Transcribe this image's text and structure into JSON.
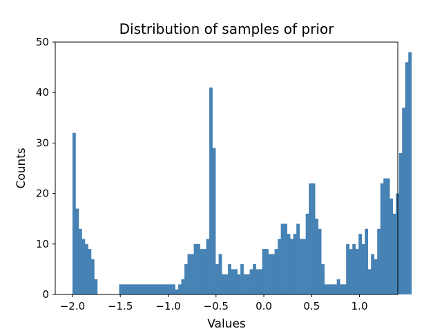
{
  "chart_data": {
    "type": "bar",
    "title": "Distribution of samples of prior",
    "xlabel": "Values",
    "ylabel": "Counts",
    "xlim": [
      -2.18,
      1.4
    ],
    "ylim": [
      0,
      50
    ],
    "bin_start": -2.0,
    "bin_width": 0.0325,
    "bar_color": "#4682b4",
    "x_ticks": [
      {
        "value": -2.0,
        "label": "−2.0"
      },
      {
        "value": -1.5,
        "label": "−1.5"
      },
      {
        "value": -1.0,
        "label": "−1.0"
      },
      {
        "value": -0.5,
        "label": "−0.5"
      },
      {
        "value": 0.0,
        "label": "0.0"
      },
      {
        "value": 0.5,
        "label": "0.5"
      },
      {
        "value": 1.0,
        "label": "1.0"
      }
    ],
    "y_ticks": [
      {
        "value": 0,
        "label": "0"
      },
      {
        "value": 10,
        "label": "10"
      },
      {
        "value": 20,
        "label": "20"
      },
      {
        "value": 30,
        "label": "30"
      },
      {
        "value": 40,
        "label": "40"
      },
      {
        "value": 50,
        "label": "50"
      }
    ],
    "values": [
      32,
      17,
      13,
      11,
      10,
      9,
      7,
      3,
      0,
      0,
      0,
      0,
      0,
      0,
      0,
      2,
      2,
      2,
      2,
      2,
      2,
      2,
      2,
      2,
      2,
      2,
      2,
      2,
      2,
      2,
      2,
      2,
      2,
      1,
      2,
      3,
      6,
      8,
      8,
      10,
      10,
      9,
      9,
      11,
      41,
      29,
      6,
      8,
      4,
      4,
      6,
      5,
      5,
      4,
      6,
      4,
      4,
      5,
      6,
      5,
      5,
      9,
      9,
      8,
      8,
      9,
      11,
      14,
      14,
      12,
      11,
      12,
      14,
      11,
      11,
      16,
      22,
      22,
      15,
      13,
      6,
      2,
      2,
      2,
      2,
      3,
      2,
      2,
      10,
      9,
      10,
      9,
      12,
      10,
      13,
      5,
      8,
      7,
      13,
      22,
      23,
      23,
      19,
      16,
      20,
      28,
      37,
      46,
      48
    ]
  }
}
